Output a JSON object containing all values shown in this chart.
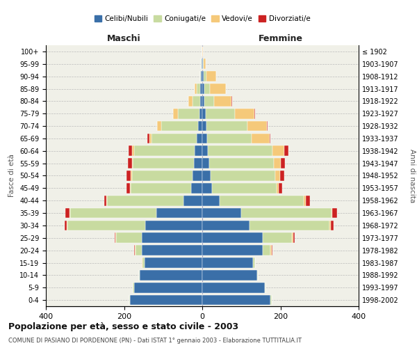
{
  "age_groups": [
    "0-4",
    "5-9",
    "10-14",
    "15-19",
    "20-24",
    "25-29",
    "30-34",
    "35-39",
    "40-44",
    "45-49",
    "50-54",
    "55-59",
    "60-64",
    "65-69",
    "70-74",
    "75-79",
    "80-84",
    "85-89",
    "90-94",
    "95-99",
    "100+"
  ],
  "birth_years": [
    "1998-2002",
    "1993-1997",
    "1988-1992",
    "1983-1987",
    "1978-1982",
    "1973-1977",
    "1968-1972",
    "1963-1967",
    "1958-1962",
    "1953-1957",
    "1948-1952",
    "1943-1947",
    "1938-1942",
    "1933-1937",
    "1928-1932",
    "1923-1927",
    "1918-1922",
    "1913-1917",
    "1908-1912",
    "1903-1907",
    "≤ 1902"
  ],
  "maschi_celibi": [
    185,
    175,
    160,
    148,
    155,
    155,
    145,
    118,
    48,
    28,
    25,
    22,
    20,
    15,
    10,
    8,
    5,
    5,
    3,
    2,
    0
  ],
  "maschi_coniugati": [
    2,
    2,
    2,
    5,
    15,
    65,
    200,
    220,
    195,
    155,
    155,
    155,
    155,
    115,
    95,
    55,
    20,
    10,
    3,
    2,
    0
  ],
  "maschi_vedovi": [
    0,
    0,
    0,
    2,
    2,
    2,
    2,
    2,
    2,
    2,
    3,
    3,
    5,
    5,
    10,
    12,
    10,
    5,
    0,
    0,
    0
  ],
  "maschi_divorziati": [
    0,
    0,
    0,
    0,
    2,
    2,
    5,
    10,
    5,
    8,
    10,
    10,
    8,
    5,
    0,
    0,
    0,
    0,
    0,
    0,
    0
  ],
  "femmine_celibi": [
    175,
    160,
    140,
    130,
    155,
    155,
    120,
    100,
    45,
    25,
    22,
    18,
    15,
    12,
    10,
    8,
    5,
    5,
    3,
    2,
    0
  ],
  "femmine_coniugati": [
    2,
    2,
    2,
    5,
    20,
    75,
    205,
    230,
    215,
    165,
    165,
    165,
    165,
    115,
    105,
    75,
    25,
    15,
    8,
    2,
    0
  ],
  "femmine_vedovi": [
    0,
    0,
    0,
    0,
    2,
    3,
    3,
    3,
    5,
    5,
    12,
    18,
    30,
    45,
    50,
    50,
    45,
    40,
    25,
    5,
    2
  ],
  "femmine_divorziati": [
    0,
    0,
    0,
    0,
    2,
    3,
    8,
    12,
    10,
    10,
    10,
    10,
    10,
    2,
    2,
    2,
    2,
    0,
    0,
    0,
    0
  ],
  "colors": {
    "celibi": "#3a6fa8",
    "coniugati": "#c8dba0",
    "vedovi": "#f5c97a",
    "divorziati": "#cc2222"
  },
  "legend_labels": [
    "Celibi/Nubili",
    "Coniugati/e",
    "Vedovi/e",
    "Divorziati/e"
  ],
  "title": "Popolazione per età, sesso e stato civile - 2003",
  "subtitle": "COMUNE DI PASIANO DI PORDENONE (PN) - Dati ISTAT 1° gennaio 2003 - Elaborazione TUTTITALIA.IT",
  "xlabel_left": "Maschi",
  "xlabel_right": "Femmine",
  "ylabel_left": "Fasce di età",
  "ylabel_right": "Anni di nascita",
  "xlim": 400,
  "bg_color": "#ffffff",
  "plot_bg": "#f0f0e8"
}
